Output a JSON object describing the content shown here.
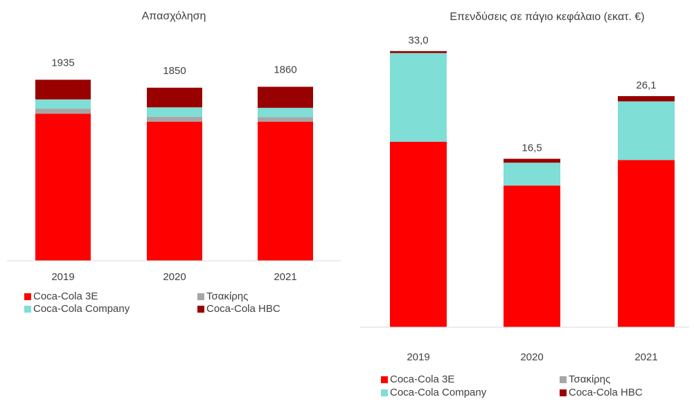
{
  "chart_data": [
    {
      "type": "bar",
      "stacked": true,
      "title": "Απασχόληση",
      "categories": [
        "2019",
        "2020",
        "2021"
      ],
      "series": [
        {
          "name": "Coca-Cola 3E",
          "color": "#ff0000",
          "values": [
            1573,
            1487,
            1486
          ]
        },
        {
          "name": "Τσακίρης",
          "color": "#a6a6a6",
          "values": [
            53,
            53,
            50
          ]
        },
        {
          "name": "Coca-Cola Company",
          "color": "#7fded6",
          "values": [
            99,
            100,
            99
          ]
        },
        {
          "name": "Coca-Cola HBC",
          "color": "#990000",
          "values": [
            210,
            210,
            225
          ]
        }
      ],
      "totals": [
        1935,
        1850,
        1860
      ],
      "ylim": [
        0,
        2100
      ]
    },
    {
      "type": "bar",
      "stacked": true,
      "title": "Επενδύσεις σε πάγιο κεφάλαιο (εκατ. €)",
      "categories": [
        "2019",
        "2020",
        "2021"
      ],
      "series": [
        {
          "name": "Coca-Cola 3E",
          "color": "#ff0000",
          "values": [
            19.1,
            12.4,
            16.3
          ]
        },
        {
          "name": "Τσακίρης",
          "color": "#a6a6a6",
          "values": [
            0,
            0,
            0
          ]
        },
        {
          "name": "Coca-Cola Company",
          "color": "#7fded6",
          "values": [
            13.6,
            3.5,
            9.0
          ]
        },
        {
          "name": "Coca-Cola HBC",
          "color": "#990000",
          "values": [
            0.3,
            0.6,
            0.8
          ]
        }
      ],
      "totals": [
        33.0,
        16.5,
        26.1
      ],
      "totals_labels": [
        "33,0",
        "16,5",
        "26,1"
      ],
      "ylim": [
        -9.3,
        35
      ]
    }
  ]
}
